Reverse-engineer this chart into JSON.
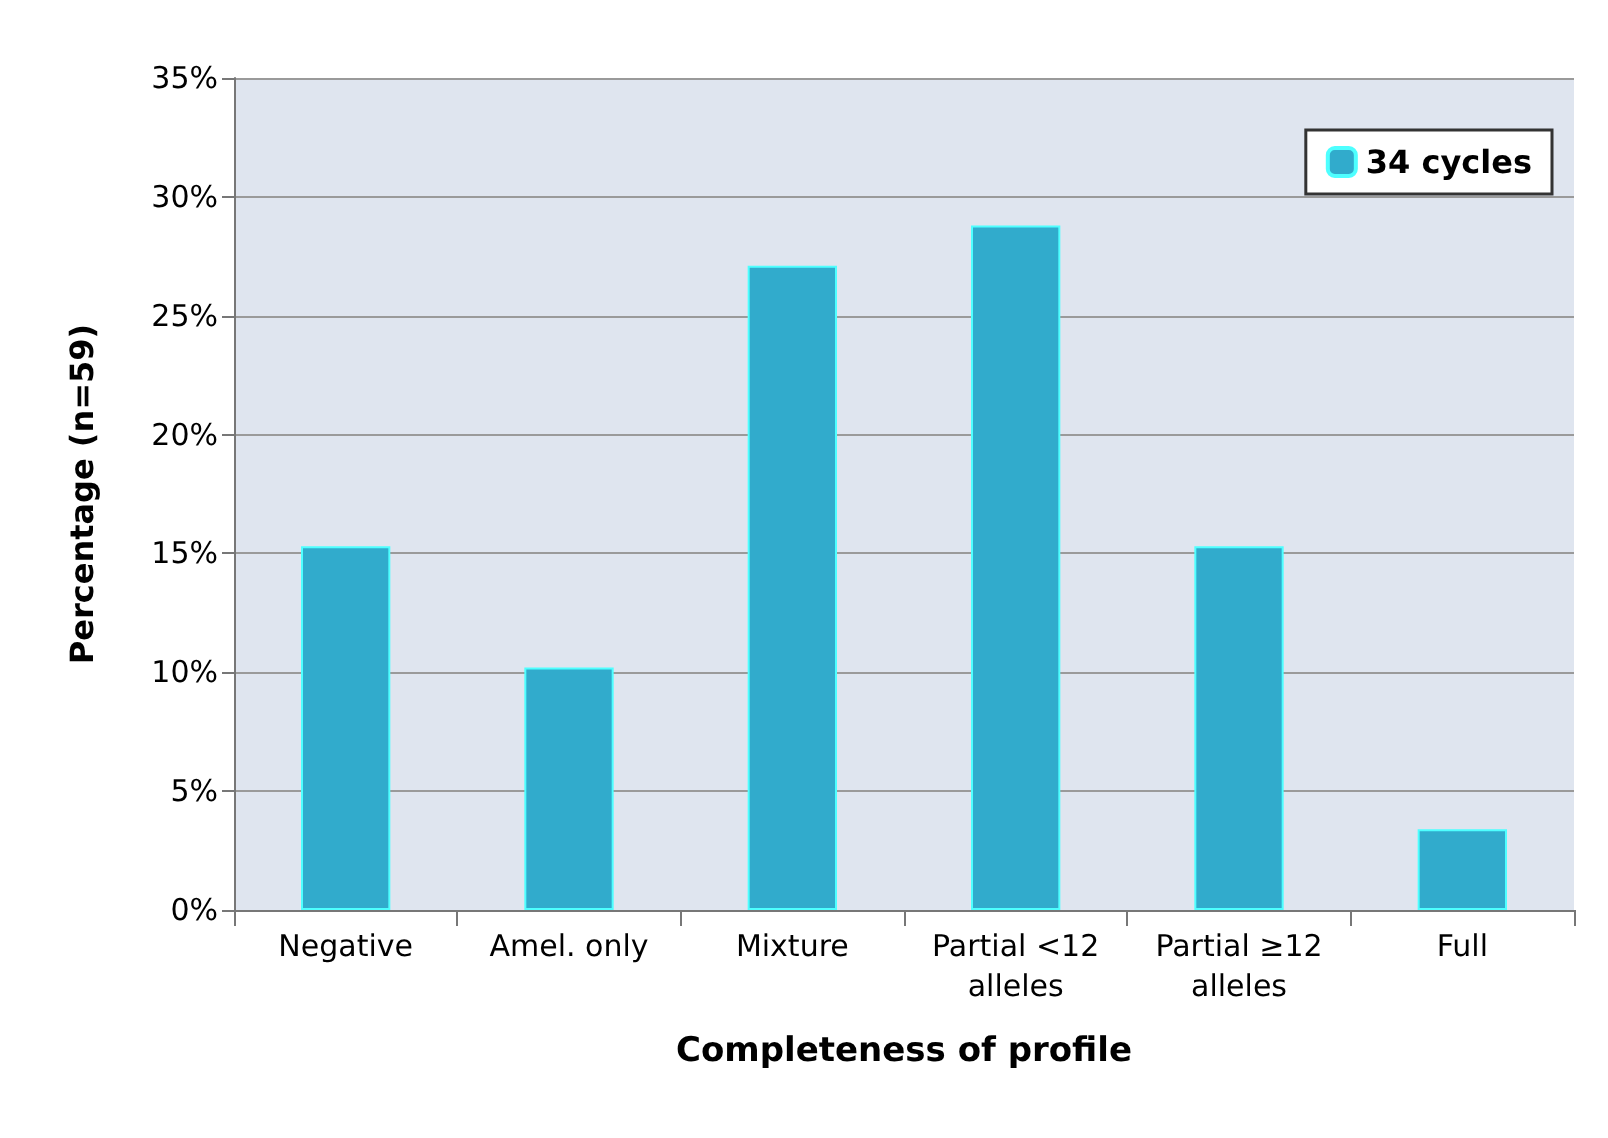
{
  "chart_data": {
    "type": "bar",
    "xlabel": "Completeness of profile",
    "ylabel": "Percentage (n=59)",
    "categories": [
      "Negative",
      "Amel. only",
      "Mixture",
      "Partial <12\nalleles",
      "Partial ≥12\nalleles",
      "Full"
    ],
    "series": [
      {
        "name": "34 cycles",
        "color": "#31abcc",
        "values": [
          15.3,
          10.2,
          27.1,
          28.8,
          15.3,
          3.4
        ]
      }
    ],
    "ylim": [
      0,
      35
    ],
    "yticks": [
      {
        "value": 0,
        "label": "0%"
      },
      {
        "value": 5,
        "label": "5%"
      },
      {
        "value": 10,
        "label": "10%"
      },
      {
        "value": 15,
        "label": "15%"
      },
      {
        "value": 20,
        "label": "20%"
      },
      {
        "value": 25,
        "label": "25%"
      },
      {
        "value": 30,
        "label": "30%"
      },
      {
        "value": 35,
        "label": "35%"
      }
    ],
    "grid": "y",
    "legend": "top right"
  }
}
